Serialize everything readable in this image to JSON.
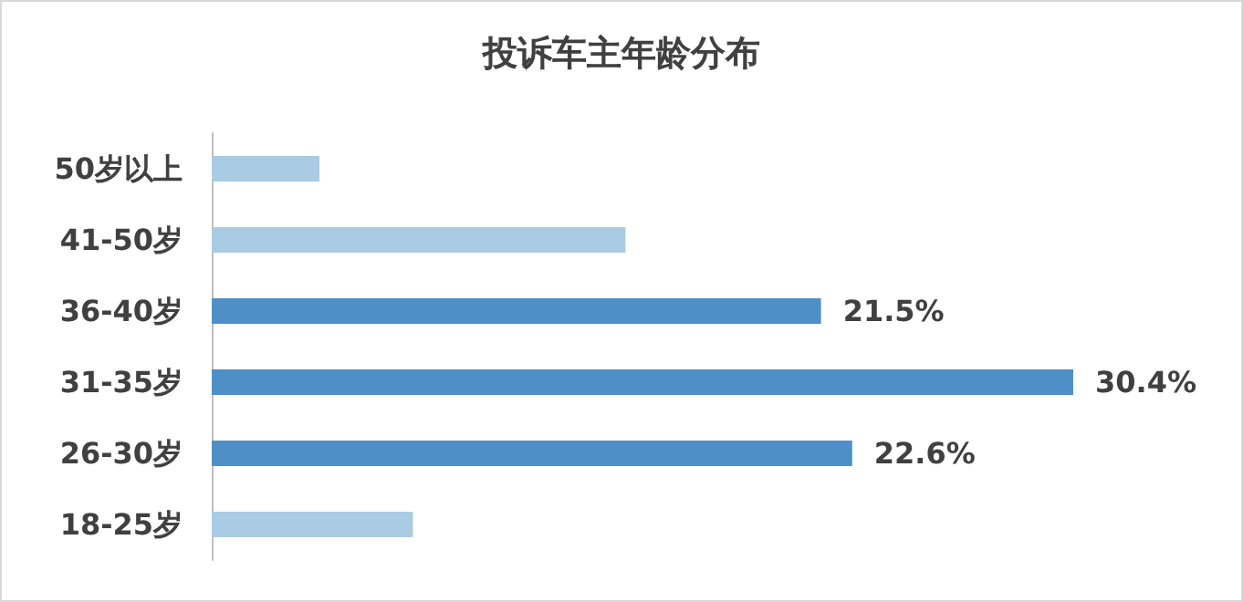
{
  "chart_data": {
    "type": "bar",
    "orientation": "horizontal",
    "title": "投诉车主年龄分布",
    "categories": [
      "50岁以上",
      "41-50岁",
      "36-40岁",
      "31-35岁",
      "26-30岁",
      "18-25岁"
    ],
    "values": [
      3.8,
      14.6,
      21.5,
      30.4,
      22.6,
      7.1
    ],
    "colors": [
      "#a9cbe4",
      "#a9cbe4",
      "#4f8fc8",
      "#4f8fc8",
      "#4f8fc8",
      "#a9cbe4"
    ],
    "value_labels": [
      null,
      null,
      "21.5%",
      "30.4%",
      "22.6%",
      null
    ]
  }
}
